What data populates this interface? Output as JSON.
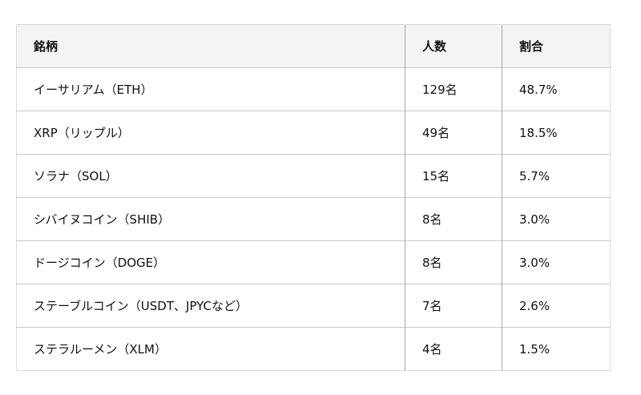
{
  "table": {
    "headers": [
      "銘柄",
      "人数",
      "割合"
    ],
    "rows": [
      [
        "イーサリアム（ETH）",
        "129名",
        "48.7%"
      ],
      [
        "XRP（リップル）",
        "49名",
        "18.5%"
      ],
      [
        "ソラナ（SOL）",
        "15名",
        "5.7%"
      ],
      [
        "シバイヌコイン（SHIB）",
        "8名",
        "3.0%"
      ],
      [
        "ドージコイン（DOGE）",
        "8名",
        "3.0%"
      ],
      [
        "ステーブルコイン（USDT、JPYCなど）",
        "7名",
        "2.6%"
      ],
      [
        "ステラルーメン（XLM）",
        "4名",
        "1.5%"
      ]
    ]
  }
}
